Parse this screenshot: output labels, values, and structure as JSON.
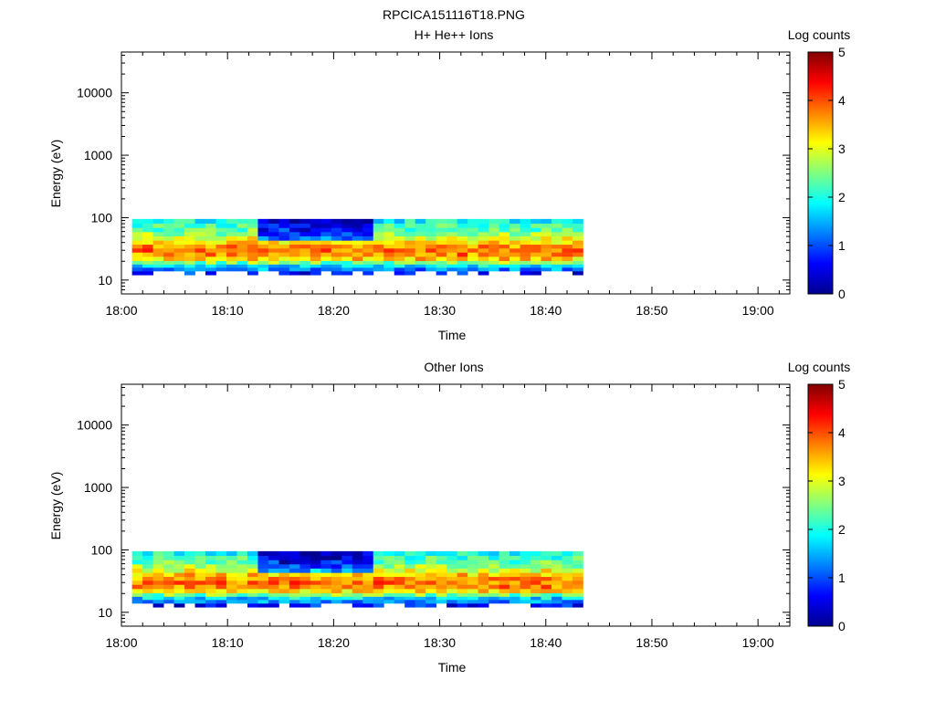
{
  "page": {
    "title": "RPCICA151116T18.PNG"
  },
  "colorscale": {
    "stops": [
      "#00008f",
      "#0000ff",
      "#0080ff",
      "#00ffff",
      "#80ff80",
      "#ffff00",
      "#ff8000",
      "#ff0000",
      "#800000"
    ]
  },
  "chart_data": [
    {
      "type": "heatmap",
      "title": "H+ He++ Ions",
      "xlabel": "Time",
      "ylabel": "Energy (eV)",
      "yscale": "log",
      "ylim": [
        6,
        45000
      ],
      "xlim_minutes": [
        0,
        63
      ],
      "x_ticks": [
        "18:00",
        "18:10",
        "18:20",
        "18:30",
        "18:40",
        "18:50",
        "19:00"
      ],
      "y_ticks": [
        "10",
        "100",
        "1000",
        "10000"
      ],
      "colorbar": {
        "label": "Log counts",
        "ticks": [
          "0",
          "1",
          "2",
          "3",
          "4",
          "5"
        ],
        "range": [
          0,
          5
        ]
      },
      "energy_bins": [
        13,
        15,
        17,
        19,
        22,
        26,
        30,
        35,
        40,
        47,
        55,
        64,
        75,
        88
      ],
      "time_start": "18:01",
      "time_end": "18:43:30",
      "num_time_bins": 43,
      "profile": [
        [
          0.5,
          1.4,
          1.6,
          2.4,
          3.2,
          3.6,
          3.8,
          3.6,
          3.3,
          3.0,
          2.6,
          2.3,
          2.2,
          2.0
        ],
        [
          0.8,
          1.2,
          1.8,
          2.6,
          3.4,
          3.8,
          3.9,
          3.7,
          3.4,
          3.1,
          2.7,
          2.4,
          2.2,
          1.9
        ]
      ],
      "dips": [
        12,
        13,
        14,
        15,
        16,
        17,
        18,
        19,
        20,
        21,
        22
      ]
    },
    {
      "type": "heatmap",
      "title": "Other Ions",
      "xlabel": "Time",
      "ylabel": "Energy (eV)",
      "yscale": "log",
      "ylim": [
        6,
        45000
      ],
      "xlim_minutes": [
        0,
        63
      ],
      "x_ticks": [
        "18:00",
        "18:10",
        "18:20",
        "18:30",
        "18:40",
        "18:50",
        "19:00"
      ],
      "y_ticks": [
        "10",
        "100",
        "1000",
        "10000"
      ],
      "colorbar": {
        "label": "Log counts",
        "ticks": [
          "0",
          "1",
          "2",
          "3",
          "4",
          "5"
        ],
        "range": [
          0,
          5
        ]
      },
      "energy_bins": [
        13,
        15,
        17,
        19,
        22,
        26,
        30,
        35,
        40,
        47,
        55,
        64,
        75,
        88
      ],
      "time_start": "18:01",
      "time_end": "18:43:30",
      "num_time_bins": 43,
      "profile": [
        [
          0.5,
          1.3,
          1.6,
          2.4,
          3.2,
          3.6,
          3.8,
          3.6,
          3.3,
          3.0,
          2.6,
          2.3,
          2.2,
          2.0
        ],
        [
          0.7,
          1.2,
          1.8,
          2.6,
          3.4,
          3.8,
          3.9,
          3.7,
          3.4,
          3.1,
          2.7,
          2.4,
          2.2,
          1.9
        ]
      ],
      "dips": [
        12,
        13,
        14,
        15,
        16,
        17,
        18,
        19,
        20,
        21,
        22
      ]
    }
  ]
}
